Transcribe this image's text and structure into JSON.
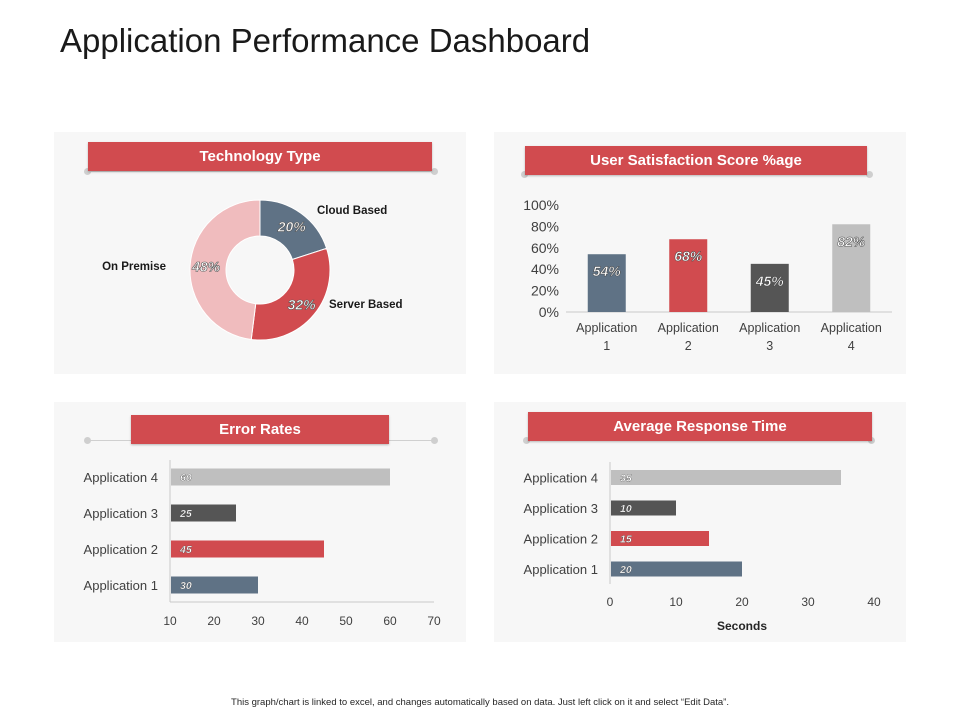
{
  "page": {
    "title": "Application Performance Dashboard",
    "footer": "This graph/chart is linked to excel, and changes automatically based on data. Just left click on it and select “Edit Data”."
  },
  "colors": {
    "accent_red": "#d14b4f",
    "slate": "#5f7285",
    "dark_gray": "#555555",
    "light_gray": "#bfbfbf",
    "pink": "#f0bcbe",
    "panel_bg": "#f7f7f7"
  },
  "panels": {
    "technology": {
      "title": "Technology Type"
    },
    "satisfaction": {
      "title": "User Satisfaction Score %age"
    },
    "errors": {
      "title": "Error Rates"
    },
    "response": {
      "title": "Average Response Time"
    }
  },
  "chart_data": [
    {
      "id": "technology",
      "type": "pie",
      "variant": "donut",
      "slices": [
        {
          "label": "Cloud Based",
          "value": 20,
          "value_label": "20%",
          "color": "#5f7285"
        },
        {
          "label": "Server Based",
          "value": 32,
          "value_label": "32%",
          "color": "#d14b4f"
        },
        {
          "label": "On Premise",
          "value": 48,
          "value_label": "48%",
          "color": "#f0bcbe"
        }
      ]
    },
    {
      "id": "satisfaction",
      "type": "bar",
      "categories": [
        [
          "Application",
          "1"
        ],
        [
          "Application",
          "2"
        ],
        [
          "Application",
          "3"
        ],
        [
          "Application",
          "4"
        ]
      ],
      "values": [
        54,
        68,
        45,
        82
      ],
      "value_labels": [
        "54%",
        "68%",
        "45%",
        "82%"
      ],
      "colors": [
        "#5f7285",
        "#d14b4f",
        "#555555",
        "#bfbfbf"
      ],
      "ylim": [
        0,
        100
      ],
      "yticks": [
        "0%",
        "20%",
        "40%",
        "60%",
        "80%",
        "100%"
      ],
      "grid": false
    },
    {
      "id": "errors",
      "type": "bar",
      "orientation": "horizontal",
      "categories": [
        "Application 1",
        "Application 2",
        "Application 3",
        "Application 4"
      ],
      "values": [
        30,
        45,
        25,
        60
      ],
      "value_labels": [
        "30",
        "45",
        "25",
        "60"
      ],
      "colors": [
        "#5f7285",
        "#d14b4f",
        "#555555",
        "#bfbfbf"
      ],
      "xlim": [
        10,
        70
      ],
      "xticks": [
        "10",
        "20",
        "30",
        "40",
        "50",
        "60",
        "70"
      ],
      "grid": false
    },
    {
      "id": "response",
      "type": "bar",
      "orientation": "horizontal",
      "categories": [
        "Application 1",
        "Application 2",
        "Application 3",
        "Application 4"
      ],
      "values": [
        20,
        15,
        10,
        35
      ],
      "value_labels": [
        "20",
        "15",
        "10",
        "35"
      ],
      "colors": [
        "#5f7285",
        "#d14b4f",
        "#555555",
        "#bfbfbf"
      ],
      "xlim": [
        0,
        40
      ],
      "xticks": [
        "0",
        "10",
        "20",
        "30",
        "40"
      ],
      "xlabel": "Seconds",
      "grid": false
    }
  ]
}
